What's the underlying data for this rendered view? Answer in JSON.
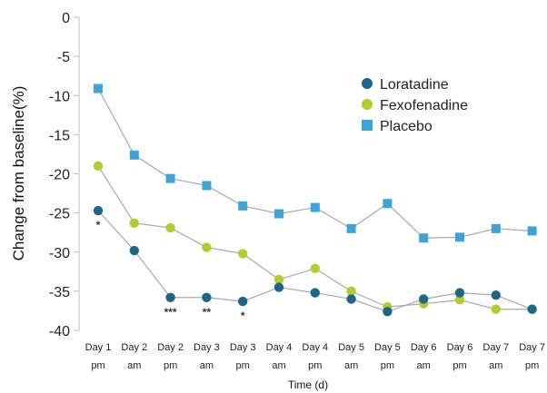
{
  "chart_data": {
    "type": "line",
    "xlabel": "Time (d)",
    "ylabel": "Change from baseline(%)",
    "ylim": [
      -40,
      0
    ],
    "yticks": [
      "0",
      "-5",
      "-10",
      "-15",
      "-20",
      "-25",
      "-30",
      "-35",
      "-40"
    ],
    "categories": [
      {
        "line1": "Day 1",
        "line2": "pm"
      },
      {
        "line1": "Day 2",
        "line2": "am"
      },
      {
        "line1": "Day 2",
        "line2": "pm"
      },
      {
        "line1": "Day 3",
        "line2": "am"
      },
      {
        "line1": "Day 3",
        "line2": "pm"
      },
      {
        "line1": "Day 4",
        "line2": "am"
      },
      {
        "line1": "Day 4",
        "line2": "pm"
      },
      {
        "line1": "Day 5",
        "line2": "am"
      },
      {
        "line1": "Day 5",
        "line2": "pm"
      },
      {
        "line1": "Day 6",
        "line2": "am"
      },
      {
        "line1": "Day 6",
        "line2": "pm"
      },
      {
        "line1": "Day 7",
        "line2": "am"
      },
      {
        "line1": "Day 7",
        "line2": "pm"
      }
    ],
    "series": [
      {
        "name": "Loratadine",
        "marker": "circle",
        "color": "#1c6788",
        "values": [
          -24.7,
          -29.8,
          -35.8,
          -35.8,
          -36.3,
          -34.5,
          -35.2,
          -36.0,
          -37.6,
          -36.0,
          -35.2,
          -35.5,
          -37.3
        ]
      },
      {
        "name": "Fexofenadine",
        "marker": "circle",
        "color": "#b5cc2e",
        "values": [
          -19.0,
          -26.3,
          -26.9,
          -29.4,
          -30.2,
          -33.5,
          -32.1,
          -35.0,
          -37.0,
          -36.6,
          -36.1,
          -37.3,
          -37.3
        ]
      },
      {
        "name": "Placebo",
        "marker": "square",
        "color": "#3da3d9",
        "values": [
          -9.1,
          -17.6,
          -20.6,
          -21.5,
          -24.1,
          -25.1,
          -24.3,
          -27.0,
          -23.8,
          -28.2,
          -28.1,
          -27.0,
          -27.3
        ]
      }
    ],
    "significance": [
      {
        "index": 0,
        "label": "*"
      },
      {
        "index": 2,
        "label": "***"
      },
      {
        "index": 3,
        "label": "**"
      },
      {
        "index": 4,
        "label": "*"
      }
    ],
    "legend_position": "top-right",
    "line_color": "#a9a9a9",
    "axis_color": "#bdbdbd",
    "grid": false
  }
}
